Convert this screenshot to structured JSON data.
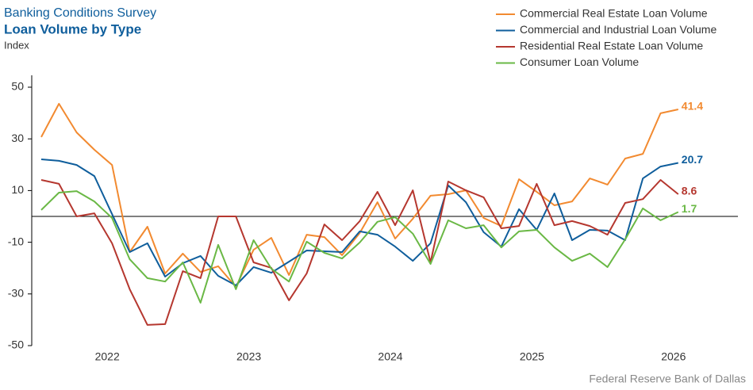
{
  "chart_data": {
    "type": "line",
    "title": "Banking Conditions Survey",
    "subtitle": "Loan Volume by Type",
    "ylabel": "Index",
    "source": "Federal Reserve Bank of Dallas",
    "categories": [
      null,
      null,
      null,
      null,
      "2022",
      null,
      null,
      null,
      null,
      null,
      null,
      null,
      "2023",
      null,
      null,
      null,
      null,
      null,
      null,
      null,
      "2024",
      null,
      null,
      null,
      null,
      null,
      null,
      null,
      "2025",
      null,
      null,
      null,
      null,
      null,
      null,
      null,
      "2026"
    ],
    "ylim": [
      -50,
      50
    ],
    "yticks": [
      50,
      30,
      10,
      -10,
      -30,
      -50
    ],
    "grid": false,
    "legend": "top-right",
    "series": [
      {
        "name": "Commercial Real Estate Loan Volume",
        "color": "#f28a30",
        "values": [
          30.7,
          43.6,
          32.5,
          25.8,
          19.9,
          -13.8,
          -4.0,
          -22.1,
          -14.4,
          -21.5,
          -19.3,
          -27.3,
          -12.9,
          -8.3,
          -22.7,
          -7.1,
          -8.0,
          -15.0,
          -6.4,
          5.5,
          -8.6,
          -0.9,
          8.0,
          8.6,
          10.1,
          -0.6,
          -3.7,
          14.4,
          9.5,
          4.3,
          5.8,
          14.7,
          12.3,
          22.4,
          24.2,
          39.9,
          41.4
        ]
      },
      {
        "name": "Commercial and Industrial Loan Volume",
        "color": "#0f5e9c",
        "values": [
          22.1,
          21.5,
          19.9,
          15.6,
          0.9,
          -13.8,
          -10.4,
          -23.3,
          -18.1,
          -15.3,
          -23.0,
          -26.7,
          -19.6,
          -21.8,
          -17.5,
          -13.2,
          -13.5,
          -13.8,
          -5.8,
          -7.1,
          -11.7,
          -17.2,
          -10.4,
          12.0,
          5.5,
          -6.1,
          -11.7,
          2.8,
          -5.2,
          8.9,
          -9.2,
          -5.2,
          -5.5,
          -9.2,
          14.7,
          19.3,
          20.7
        ]
      },
      {
        "name": "Residential Real Estate Loan Volume",
        "color": "#b5372f",
        "values": [
          14.1,
          12.6,
          0,
          1.2,
          -10.4,
          -28.2,
          -42.0,
          -41.7,
          -21.2,
          -23.9,
          0,
          0,
          -17.8,
          -19.9,
          -32.5,
          -22.1,
          -3.1,
          -9.2,
          -1.8,
          9.5,
          -3.4,
          10.1,
          -17.8,
          13.5,
          10.1,
          7.4,
          -4.6,
          -3.7,
          12.6,
          -3.4,
          -1.8,
          -3.7,
          -7.1,
          5.2,
          6.7,
          14.1,
          8.6
        ]
      },
      {
        "name": "Consumer Loan Volume",
        "color": "#6ab845",
        "values": [
          2.5,
          9.2,
          9.8,
          5.8,
          -0.6,
          -16.6,
          -23.9,
          -25.2,
          -17.8,
          -33.4,
          -11.0,
          -28.2,
          -9.2,
          -20.2,
          -25.2,
          -9.8,
          -14.1,
          -16.3,
          -10.1,
          -2.1,
          -0.3,
          -6.7,
          -18.4,
          -1.5,
          -4.6,
          -3.4,
          -12.0,
          -5.8,
          -5.2,
          -12.0,
          -17.2,
          -14.4,
          -19.6,
          -8.9,
          3.1,
          -1.5,
          1.7
        ]
      }
    ]
  }
}
